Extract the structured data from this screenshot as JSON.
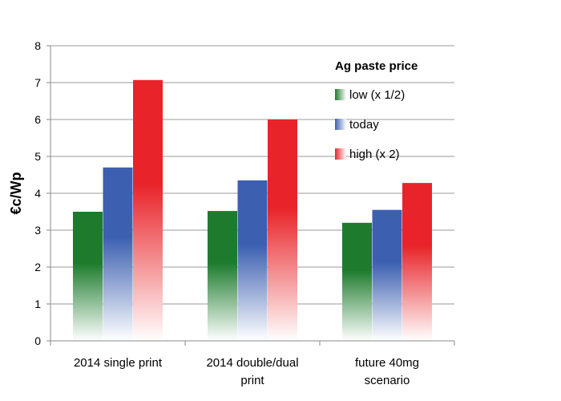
{
  "chart_data": {
    "type": "bar",
    "title": "",
    "ylabel": "€c/Wp",
    "xlabel": "",
    "ylim": [
      0,
      8
    ],
    "yticks": [
      "0",
      "1",
      "2",
      "3",
      "4",
      "5",
      "6",
      "7",
      "8"
    ],
    "grid": true,
    "categories": [
      [
        "2014 single print"
      ],
      [
        "2014 double/dual",
        "print"
      ],
      [
        "future 40mg",
        "scenario"
      ]
    ],
    "legend": {
      "title": "Ag paste price",
      "placement": "top-right"
    },
    "series": [
      {
        "name": "low (x 1/2)",
        "color": "#1e7b2e",
        "values": [
          3.5,
          3.52,
          3.2
        ]
      },
      {
        "name": "today",
        "color": "#3c5fb0",
        "values": [
          4.7,
          4.35,
          3.55
        ]
      },
      {
        "name": "high (x 2)",
        "color": "#e8242a",
        "values": [
          7.07,
          6.0,
          4.28
        ]
      }
    ]
  }
}
